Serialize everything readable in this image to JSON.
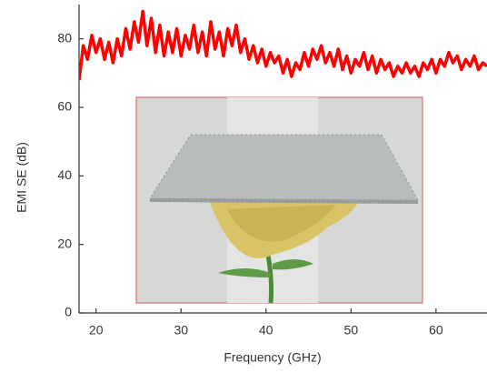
{
  "chart_data": {
    "type": "line",
    "x_label": "Frequency (GHz)",
    "y_label": "EMI SE (dB)",
    "xlim": [
      18,
      66
    ],
    "ylim": [
      0,
      90
    ],
    "xticks": [
      20,
      30,
      40,
      50,
      60
    ],
    "yticks": [
      0,
      20,
      40,
      60,
      80
    ],
    "x": [
      18,
      18.5,
      19,
      19.5,
      20,
      20.5,
      21,
      21.5,
      22,
      22.5,
      23,
      23.5,
      24,
      24.5,
      25,
      25.5,
      26,
      26.5,
      27,
      27.5,
      28,
      28.5,
      29,
      29.5,
      30,
      30.5,
      31,
      31.5,
      32,
      32.5,
      33,
      33.5,
      34,
      34.5,
      35,
      35.5,
      36,
      36.5,
      37,
      37.5,
      38,
      38.5,
      39,
      39.5,
      40,
      40.5,
      41,
      41.5,
      42,
      42.5,
      43,
      43.5,
      44,
      44.5,
      45,
      45.5,
      46,
      46.5,
      47,
      47.5,
      48,
      48.5,
      49,
      49.5,
      50,
      50.5,
      51,
      51.5,
      52,
      52.5,
      53,
      53.5,
      54,
      54.5,
      55,
      55.5,
      56,
      56.5,
      57,
      57.5,
      58,
      58.5,
      59,
      59.5,
      60,
      60.5,
      61,
      61.5,
      62,
      62.5,
      63,
      63.5,
      64,
      64.5,
      65,
      65.5,
      66
    ],
    "series": [
      {
        "color": "#ff0000",
        "values": [
          68,
          78,
          74,
          81,
          76,
          80,
          74,
          79,
          73,
          80,
          75,
          83,
          77,
          85,
          79,
          88,
          78,
          86,
          76,
          84,
          75,
          82,
          76,
          83,
          75,
          81,
          77,
          84,
          76,
          82,
          75,
          85,
          77,
          82,
          75,
          83,
          78,
          84,
          76,
          80,
          74,
          78,
          73,
          77,
          72,
          76,
          73,
          75,
          70,
          74,
          69,
          73,
          71,
          76,
          72,
          77,
          74,
          78,
          73,
          76,
          72,
          77,
          71,
          75,
          70,
          74,
          72,
          76,
          71,
          75,
          70,
          74,
          71,
          73,
          69,
          72,
          70,
          73,
          70,
          72,
          69,
          73,
          71,
          74,
          70,
          74,
          72,
          76,
          73,
          75,
          71,
          74,
          72,
          75,
          71,
          73,
          72
        ]
      }
    ]
  }
}
